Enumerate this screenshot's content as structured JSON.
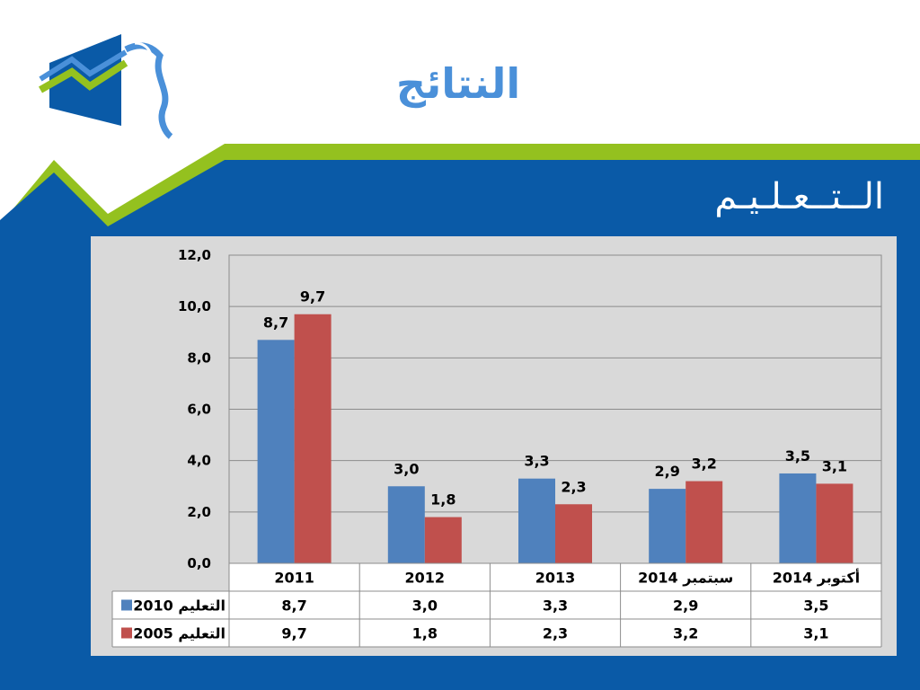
{
  "slide": {
    "title": "النتائج",
    "subtitle": "الــتــعـلـيـم"
  },
  "colors": {
    "blue_band": "#0a5aa7",
    "green_band": "#94c11f",
    "title": "#4a90d9",
    "series_1": "#4f81bd",
    "series_2": "#c0504d"
  },
  "icons": {
    "logo": "logo-icon"
  },
  "chart_data": {
    "type": "bar",
    "categories": [
      "2011",
      "2012",
      "2013",
      "سبتمبر 2014",
      "أكتوبر 2014"
    ],
    "series": [
      {
        "name": "التعليم 2010",
        "values": [
          8.7,
          3.0,
          3.3,
          2.9,
          3.5
        ],
        "labels": [
          "8,7",
          "3,0",
          "3,3",
          "2,9",
          "3,5"
        ]
      },
      {
        "name": "التعليم 2005",
        "values": [
          9.7,
          1.8,
          2.3,
          3.2,
          3.1
        ],
        "labels": [
          "9,7",
          "1,8",
          "2,3",
          "3,2",
          "3,1"
        ]
      }
    ],
    "ylim": [
      0,
      12
    ],
    "yticks": [
      "0,0",
      "2,0",
      "4,0",
      "6,0",
      "8,0",
      "10,0",
      "12,0"
    ],
    "grid": true,
    "data_table": true
  }
}
